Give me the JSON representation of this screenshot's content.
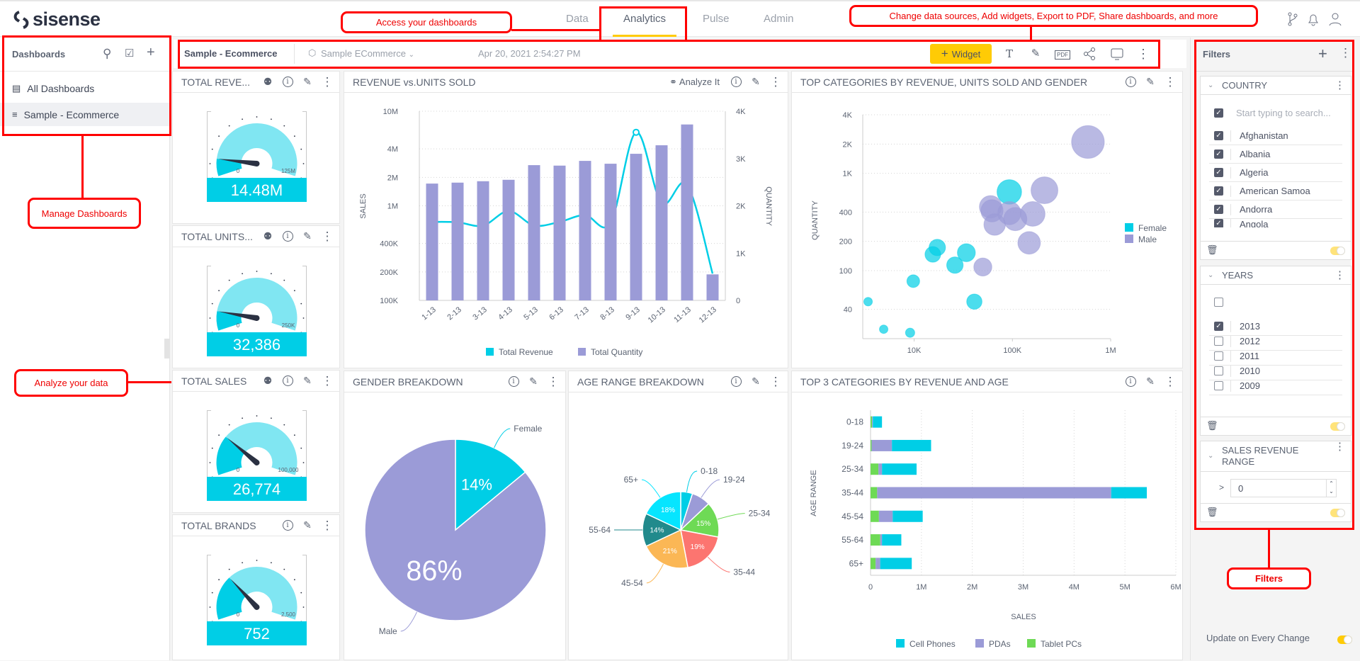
{
  "app": {
    "logo": "sisense",
    "nav": [
      {
        "label": "Data",
        "active": false
      },
      {
        "label": "Analytics",
        "active": true
      },
      {
        "label": "Pulse",
        "active": false
      },
      {
        "label": "Admin",
        "active": false
      }
    ],
    "top_icons": [
      "branch-icon",
      "bell-icon",
      "user-icon"
    ]
  },
  "sidebar": {
    "title": "Dashboards",
    "icons": [
      "search-icon",
      "checklist-icon",
      "plus-icon"
    ],
    "items": [
      {
        "label": "All Dashboards",
        "icon": "dashboards-folder-icon",
        "selected": false
      },
      {
        "label": "Sample - Ecommerce",
        "icon": "dashboard-list-icon",
        "selected": true
      }
    ]
  },
  "toolbar": {
    "dashboard_title": "Sample - Ecommerce",
    "datasource": "Sample ECommerce",
    "timestamp": "Apr 20, 2021 2:54:27 PM",
    "widget_button": "Widget",
    "pdf_label": "PDF",
    "icons": [
      "text-icon",
      "brush-icon",
      "pdf-icon",
      "share-icon",
      "monitor-icon",
      "more-icon"
    ]
  },
  "widgets": {
    "analyze_label": "Analyze It",
    "gauges": [
      {
        "title": "TOTAL REVE...",
        "value_label": "14.48M",
        "min_label": "0",
        "max_label": "125M",
        "value": 14.48,
        "max": 125,
        "analyze": true
      },
      {
        "title": "TOTAL UNITS...",
        "value_label": "32,386",
        "min_label": "0",
        "max_label": "250K",
        "value": 32386,
        "max": 250000,
        "analyze": true
      },
      {
        "title": "TOTAL SALES",
        "value_label": "26,774",
        "min_label": "0",
        "max_label": "100,000",
        "value": 26774,
        "max": 100000,
        "analyze": true
      },
      {
        "title": "TOTAL BRANDS",
        "value_label": "752",
        "min_label": "0",
        "max_label": "2,500",
        "value": 752,
        "max": 2500,
        "analyze": false
      }
    ]
  },
  "colors": {
    "cyan": "#00cee6",
    "light_cyan": "#80e6f2",
    "purple": "#9b9bd7",
    "green": "#6eda55",
    "accent": "#ffcb05",
    "needle": "#2b3142"
  },
  "chart_data": [
    {
      "id": "revenue",
      "type": "bar+line",
      "title": "REVENUE vs.UNITS SOLD",
      "categories": [
        "1-13",
        "2-13",
        "3-13",
        "4-13",
        "5-13",
        "6-13",
        "7-13",
        "8-13",
        "9-13",
        "10-13",
        "11-13",
        "12-13"
      ],
      "series": [
        {
          "name": "Total Revenue",
          "type": "line",
          "axis": "left",
          "color": "#00cee6",
          "values": [
            676000,
            670000,
            617000,
            881000,
            620000,
            676000,
            798000,
            660000,
            5990000,
            1070000,
            1680000,
            192000
          ]
        },
        {
          "name": "Total Quantity",
          "type": "bar",
          "axis": "right",
          "color": "#9b9bd7",
          "values": [
            2470,
            2490,
            2520,
            2550,
            2860,
            2850,
            2950,
            2890,
            3100,
            3280,
            3720,
            550
          ]
        }
      ],
      "ylabel": "SALES",
      "ylabel_right": "QUANTITY",
      "yscale": "log",
      "ylim": [
        100000,
        10000000
      ],
      "yticks": [
        "100K",
        "200K",
        "400K",
        "1M",
        "2M",
        "4M",
        "10M"
      ],
      "ytick_values": [
        100000,
        200000,
        400000,
        1000000,
        2000000,
        4000000,
        10000000
      ],
      "ylim_right": [
        0,
        4000
      ],
      "yticks_right": [
        "0",
        "1K",
        "2K",
        "3K",
        "4K"
      ],
      "grid": true,
      "legend": "bottom"
    },
    {
      "id": "scatter",
      "type": "scatter",
      "title": "TOP CATEGORIES BY REVENUE, UNITS SOLD AND GENDER",
      "ylabel": "QUANTITY",
      "xscale": "log",
      "xlim": [
        3000,
        1000000
      ],
      "xticks": [
        "10K",
        "100K",
        "1M"
      ],
      "xtick_values": [
        10000,
        100000,
        1000000
      ],
      "yscale": "log",
      "ylim": [
        20,
        4000
      ],
      "yticks": [
        "40",
        "100",
        "200",
        "400",
        "1K",
        "2K",
        "4K"
      ],
      "ytick_values": [
        40,
        100,
        200,
        400,
        1000,
        2000,
        4000
      ],
      "legend": "right",
      "grid": true,
      "series": [
        {
          "name": "Female",
          "color": "#00cee6",
          "points": [
            [
              3400,
              48
            ],
            [
              4900,
              25
            ],
            [
              9100,
              23
            ],
            [
              9800,
              78
            ],
            [
              15500,
              147
            ],
            [
              17200,
              173
            ],
            [
              26000,
              114
            ],
            [
              34000,
              153
            ],
            [
              41000,
              48
            ],
            [
              93000,
              644
            ]
          ]
        },
        {
          "name": "Male",
          "color": "#9b9bd7",
          "points": [
            [
              50000,
              109
            ],
            [
              60000,
              453
            ],
            [
              62000,
              412
            ],
            [
              66000,
              298
            ],
            [
              93000,
              390
            ],
            [
              107000,
              339
            ],
            [
              161000,
              383
            ],
            [
              148000,
              193
            ],
            [
              212000,
              670
            ],
            [
              587000,
              2100
            ]
          ]
        }
      ]
    },
    {
      "id": "gender",
      "type": "pie",
      "title": "GENDER BREAKDOWN",
      "slices": [
        {
          "label": "Female",
          "value": 14,
          "value_label": "14%",
          "color": "#00cee6"
        },
        {
          "label": "Male",
          "value": 86,
          "value_label": "86%",
          "color": "#9b9bd7"
        }
      ]
    },
    {
      "id": "age",
      "type": "pie",
      "title": "AGE RANGE BREAKDOWN",
      "slices": [
        {
          "label": "0-18",
          "value": 5,
          "value_label": "",
          "color": "#00cee6"
        },
        {
          "label": "19-24",
          "value": 8,
          "value_label": "",
          "color": "#9b9bd7"
        },
        {
          "label": "25-34",
          "value": 15,
          "value_label": "15%",
          "color": "#6eda55"
        },
        {
          "label": "35-44",
          "value": 19,
          "value_label": "19%",
          "color": "#fc7570"
        },
        {
          "label": "45-54",
          "value": 21,
          "value_label": "21%",
          "color": "#fbb755"
        },
        {
          "label": "55-64",
          "value": 14,
          "value_label": "14%",
          "color": "#218a8c"
        },
        {
          "label": "65+",
          "value": 18,
          "value_label": "18%",
          "color": "#06e5ff"
        }
      ]
    },
    {
      "id": "agebars",
      "type": "bar",
      "orientation": "horizontal",
      "stacked": true,
      "title": "TOP 3 CATEGORIES BY REVENUE AND AGE",
      "categories": [
        "0-18",
        "19-24",
        "25-34",
        "35-44",
        "45-54",
        "55-64",
        "65+"
      ],
      "series": [
        {
          "name": "Tablet PCs",
          "color": "#6eda55",
          "values": [
            30000,
            20000,
            155000,
            130000,
            165000,
            190000,
            100000
          ]
        },
        {
          "name": "PDAs",
          "color": "#9b9bd7",
          "values": [
            15000,
            400000,
            70000,
            4600000,
            270000,
            35000,
            90000
          ]
        },
        {
          "name": "Cell Phones",
          "color": "#00cee6",
          "values": [
            180000,
            770000,
            680000,
            700000,
            590000,
            380000,
            620000
          ]
        }
      ],
      "legend_order": [
        "Cell Phones",
        "PDAs",
        "Tablet PCs"
      ],
      "xlabel": "SALES",
      "ylabel": "AGE RANGE",
      "xlim": [
        0,
        6000000
      ],
      "xticks": [
        "0",
        "1M",
        "2M",
        "3M",
        "4M",
        "5M",
        "6M"
      ],
      "grid": true,
      "legend": "bottom"
    }
  ],
  "filters": {
    "title": "Filters",
    "country": {
      "title": "COUNTRY",
      "search_placeholder": "Start typing to search...",
      "items": [
        {
          "label": "Afghanistan",
          "checked": true
        },
        {
          "label": "Albania",
          "checked": true
        },
        {
          "label": "Algeria",
          "checked": true
        },
        {
          "label": "American Samoa",
          "checked": true
        },
        {
          "label": "Andorra",
          "checked": true
        },
        {
          "label": "Angola",
          "checked": true
        }
      ]
    },
    "years": {
      "title": "YEARS",
      "items": [
        {
          "label": "2013",
          "checked": true
        },
        {
          "label": "2012",
          "checked": false
        },
        {
          "label": "2011",
          "checked": false
        },
        {
          "label": "2010",
          "checked": false
        },
        {
          "label": "2009",
          "checked": false
        }
      ]
    },
    "revenue_range": {
      "title_line1": "SALES REVENUE",
      "title_line2": "RANGE",
      "operator": ">",
      "value": "0"
    },
    "update_label": "Update on Every Change",
    "update_enabled": true
  },
  "annotations": {
    "access": "Access your dashboards",
    "toolbar": "Change data sources, Add widgets, Export to PDF, Share dashboards, and more",
    "manage": "Manage Dashboards",
    "analyze": "Analyze your data",
    "filters": "Filters"
  }
}
